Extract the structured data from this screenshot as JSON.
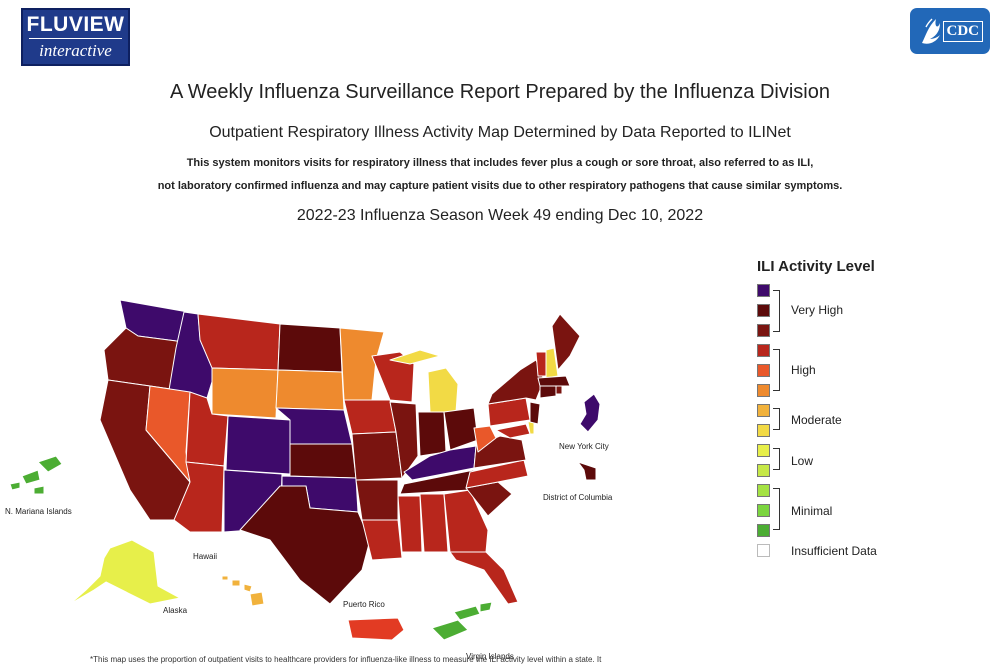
{
  "header": {
    "logo_line1": "FLUVIEW",
    "logo_line2": "interactive",
    "cdc_logo": "CDC"
  },
  "titles": {
    "main": "A Weekly Influenza Surveillance Report Prepared by the Influenza Division",
    "sub": "Outpatient Respiratory Illness Activity Map Determined by Data Reported to ILINet",
    "desc1": "This system monitors visits for respiratory illness that includes fever plus a cough or sore throat, also referred to as ILI,",
    "desc2": "not laboratory confirmed influenza and may capture patient visits due to other respiratory pathogens that cause similar symptoms.",
    "week": "2022-23 Influenza Season Week 49 ending Dec 10, 2022"
  },
  "map_labels": {
    "nyc": "New York City",
    "dc": "District of Columbia",
    "mariana": "N. Mariana Islands",
    "hawaii": "Hawaii",
    "alaska": "Alaska",
    "pr": "Puerto Rico",
    "vi": "Virgin Islands"
  },
  "legend": {
    "title": "ILI Activity Level",
    "swatches": [
      "#3e0a6b",
      "#5c0a0a",
      "#7a1410",
      "#b8261c",
      "#e9582a",
      "#ee8a2e",
      "#f1b23c",
      "#f2da45",
      "#e7ef4a",
      "#c6e848",
      "#a5e243",
      "#7cd53f",
      "#4cad33",
      "#ffffff"
    ],
    "groups": {
      "very_high": "Very High",
      "high": "High",
      "moderate": "Moderate",
      "low": "Low",
      "minimal": "Minimal",
      "insufficient": "Insufficient Data"
    }
  },
  "footer": "*This map uses the proportion of outpatient visits to healthcare providers for influenza-like illness to measure the ILI activity level within a state. It"
}
